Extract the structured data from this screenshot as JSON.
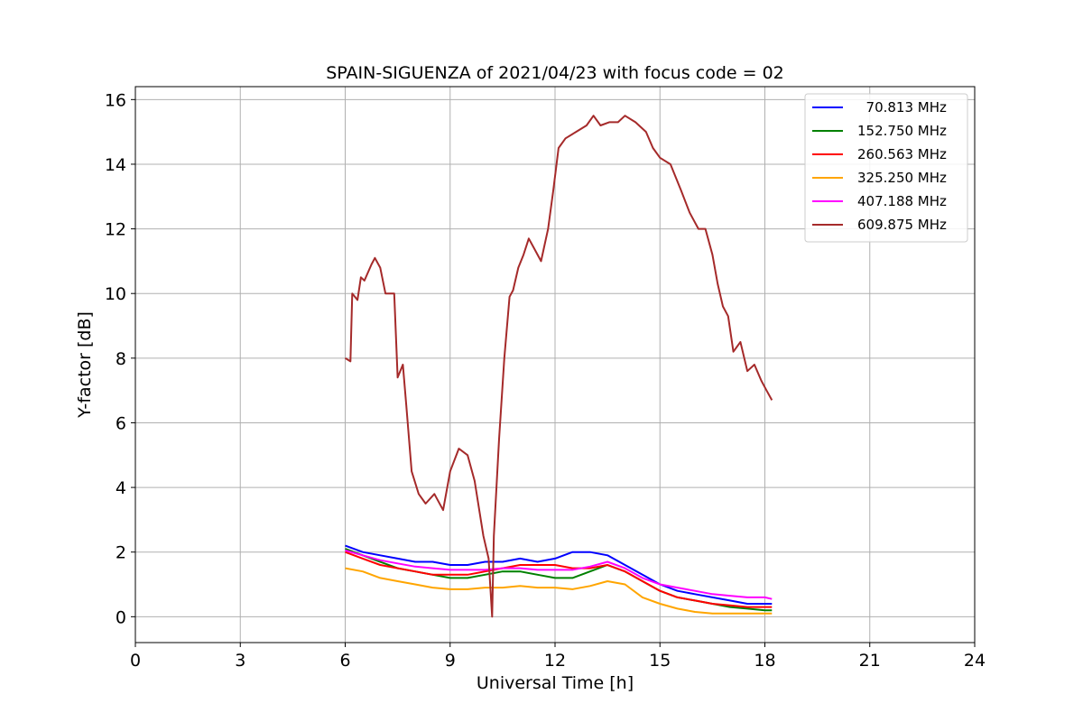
{
  "chart_data": {
    "type": "line",
    "title": "SPAIN-SIGUENZA of 2021/04/23 with focus code = 02",
    "xlabel": "Universal Time [h]",
    "ylabel": "Y-factor [dB]",
    "xlim": [
      0,
      24
    ],
    "ylim": [
      -0.8,
      16.4
    ],
    "xticks": [
      0,
      3,
      6,
      9,
      12,
      15,
      18,
      21,
      24
    ],
    "yticks": [
      0,
      2,
      4,
      6,
      8,
      10,
      12,
      14,
      16
    ],
    "grid": true,
    "legend_position": "top-right",
    "series": [
      {
        "name": "  70.813 MHz",
        "color": "#0000ff",
        "x": [
          6.0,
          6.5,
          7.0,
          7.5,
          8.0,
          8.5,
          9.0,
          9.5,
          10.0,
          10.5,
          11.0,
          11.5,
          12.0,
          12.5,
          13.0,
          13.5,
          14.0,
          14.5,
          15.0,
          15.5,
          16.0,
          16.5,
          17.0,
          17.5,
          18.0,
          18.2
        ],
        "y": [
          2.2,
          2.0,
          1.9,
          1.8,
          1.7,
          1.7,
          1.6,
          1.6,
          1.7,
          1.7,
          1.8,
          1.7,
          1.8,
          2.0,
          2.0,
          1.9,
          1.6,
          1.3,
          1.0,
          0.8,
          0.7,
          0.6,
          0.5,
          0.4,
          0.4,
          0.4
        ]
      },
      {
        "name": "152.750 MHz",
        "color": "#008000",
        "x": [
          6.0,
          6.5,
          7.0,
          7.5,
          8.0,
          8.5,
          9.0,
          9.5,
          10.0,
          10.5,
          11.0,
          11.5,
          12.0,
          12.5,
          13.0,
          13.5,
          14.0,
          14.5,
          15.0,
          15.5,
          16.0,
          16.5,
          17.0,
          17.5,
          18.0,
          18.2
        ],
        "y": [
          2.1,
          1.9,
          1.7,
          1.5,
          1.4,
          1.3,
          1.2,
          1.2,
          1.3,
          1.4,
          1.4,
          1.3,
          1.2,
          1.2,
          1.4,
          1.6,
          1.4,
          1.1,
          0.8,
          0.6,
          0.5,
          0.4,
          0.3,
          0.25,
          0.2,
          0.2
        ]
      },
      {
        "name": "260.563 MHz",
        "color": "#ff0000",
        "x": [
          6.0,
          6.5,
          7.0,
          7.5,
          8.0,
          8.5,
          9.0,
          9.5,
          10.0,
          10.5,
          11.0,
          11.5,
          12.0,
          12.5,
          13.0,
          13.5,
          14.0,
          14.5,
          15.0,
          15.5,
          16.0,
          16.5,
          17.0,
          17.5,
          18.0,
          18.2
        ],
        "y": [
          2.0,
          1.8,
          1.6,
          1.5,
          1.4,
          1.3,
          1.3,
          1.3,
          1.4,
          1.5,
          1.6,
          1.6,
          1.6,
          1.5,
          1.5,
          1.6,
          1.4,
          1.1,
          0.8,
          0.6,
          0.5,
          0.4,
          0.35,
          0.3,
          0.3,
          0.3
        ]
      },
      {
        "name": "325.250 MHz",
        "color": "#ffa500",
        "x": [
          6.0,
          6.5,
          7.0,
          7.5,
          8.0,
          8.5,
          9.0,
          9.5,
          10.0,
          10.5,
          11.0,
          11.5,
          12.0,
          12.5,
          13.0,
          13.5,
          14.0,
          14.5,
          15.0,
          15.5,
          16.0,
          16.5,
          17.0,
          17.5,
          18.0,
          18.2
        ],
        "y": [
          1.5,
          1.4,
          1.2,
          1.1,
          1.0,
          0.9,
          0.85,
          0.85,
          0.9,
          0.9,
          0.95,
          0.9,
          0.9,
          0.85,
          0.95,
          1.1,
          1.0,
          0.6,
          0.4,
          0.25,
          0.15,
          0.1,
          0.1,
          0.1,
          0.1,
          0.1
        ]
      },
      {
        "name": "407.188 MHz",
        "color": "#ff00ff",
        "x": [
          6.0,
          6.5,
          7.0,
          7.5,
          8.0,
          8.5,
          9.0,
          9.5,
          10.0,
          10.5,
          11.0,
          11.5,
          12.0,
          12.5,
          13.0,
          13.5,
          14.0,
          14.5,
          15.0,
          15.5,
          16.0,
          16.5,
          17.0,
          17.5,
          18.0,
          18.2
        ],
        "y": [
          2.05,
          1.9,
          1.75,
          1.65,
          1.55,
          1.5,
          1.45,
          1.45,
          1.45,
          1.5,
          1.5,
          1.45,
          1.45,
          1.45,
          1.55,
          1.7,
          1.5,
          1.2,
          1.0,
          0.9,
          0.8,
          0.7,
          0.65,
          0.6,
          0.6,
          0.55
        ]
      },
      {
        "name": "609.875 MHz",
        "color": "#a52a2a",
        "x": [
          6.0,
          6.15,
          6.2,
          6.35,
          6.45,
          6.55,
          6.75,
          6.85,
          7.0,
          7.15,
          7.4,
          7.5,
          7.65,
          7.75,
          7.9,
          8.1,
          8.3,
          8.55,
          8.8,
          9.0,
          9.25,
          9.5,
          9.7,
          9.95,
          10.1,
          10.2,
          10.25,
          10.4,
          10.55,
          10.7,
          10.8,
          10.95,
          11.1,
          11.25,
          11.4,
          11.6,
          11.8,
          11.95,
          12.1,
          12.3,
          12.6,
          12.9,
          13.1,
          13.3,
          13.55,
          13.8,
          14.0,
          14.3,
          14.6,
          14.8,
          15.0,
          15.3,
          15.6,
          15.85,
          16.1,
          16.3,
          16.5,
          16.65,
          16.8,
          16.95,
          17.1,
          17.3,
          17.5,
          17.7,
          17.9,
          18.05,
          18.2
        ],
        "y": [
          8.0,
          7.9,
          10.0,
          9.8,
          10.5,
          10.4,
          10.9,
          11.1,
          10.8,
          10.0,
          10.0,
          7.4,
          7.8,
          6.5,
          4.5,
          3.8,
          3.5,
          3.8,
          3.3,
          4.5,
          5.2,
          5.0,
          4.2,
          2.5,
          1.8,
          0.0,
          2.5,
          5.5,
          8.0,
          9.9,
          10.1,
          10.8,
          11.2,
          11.7,
          11.4,
          11.0,
          12.0,
          13.2,
          14.5,
          14.8,
          15.0,
          15.2,
          15.5,
          15.2,
          15.3,
          15.3,
          15.5,
          15.3,
          15.0,
          14.5,
          14.2,
          14.0,
          13.2,
          12.5,
          12.0,
          12.0,
          11.2,
          10.3,
          9.6,
          9.3,
          8.2,
          8.5,
          7.6,
          7.8,
          7.3,
          7.0,
          6.7
        ]
      }
    ]
  }
}
